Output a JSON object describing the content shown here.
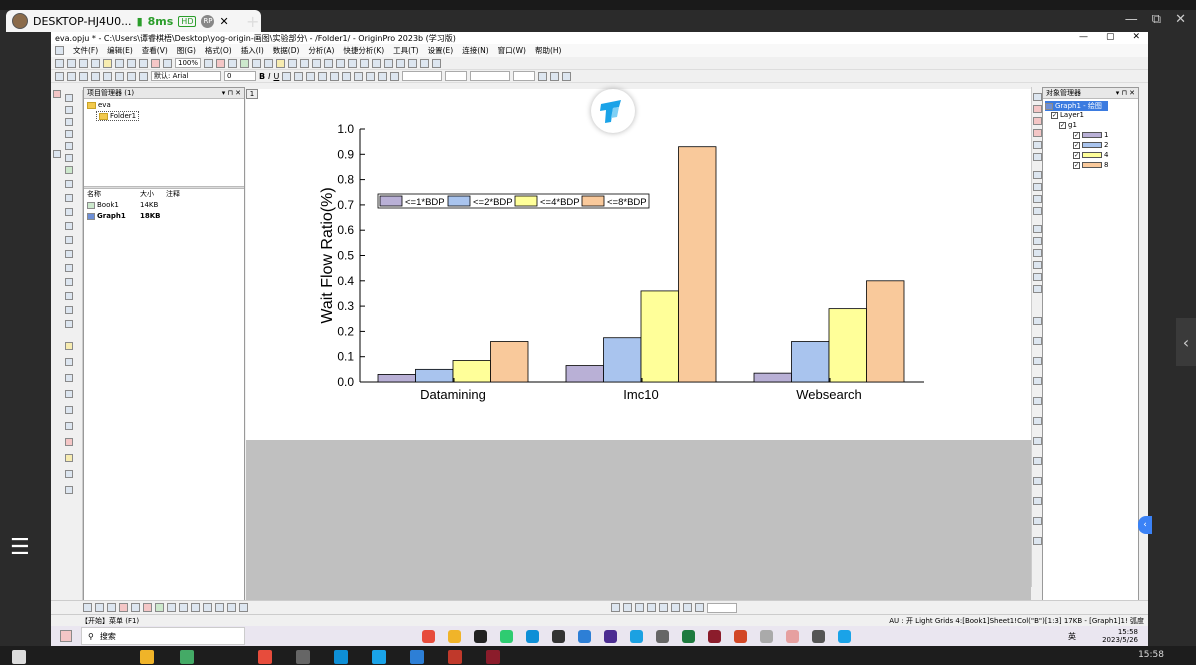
{
  "remote": {
    "tab_title": "DESKTOP-HJ4U0...",
    "latency": "8ms",
    "quality_badge": "HD",
    "badge2": "RP",
    "tab_close": "✕",
    "new_tab": "+",
    "window_controls": [
      "—",
      "⧉",
      "✕"
    ]
  },
  "app": {
    "title": "eva.opju * - C:\\Users\\谭睿棋梧\\Desktop\\yog-origin-画图\\实验部分\\ - /Folder1/ - OriginPro 2023b (学习版)",
    "menu": [
      "文件(F)",
      "编辑(E)",
      "查看(V)",
      "图(G)",
      "格式(O)",
      "插入(I)",
      "数据(D)",
      "分析(A)",
      "快捷分析(K)",
      "工具(T)",
      "设置(E)",
      "连接(N)",
      "窗口(W)",
      "帮助(H)"
    ],
    "toolbar": {
      "zoom": "100%",
      "font": "默认: Arial",
      "size": "0"
    },
    "project_manager": {
      "title": "项目管理器 (1)",
      "root": "eva",
      "folder": "Folder1",
      "columns": [
        "名称",
        "大小",
        "注释"
      ],
      "rows": [
        {
          "name": "Book1",
          "size": "14KB"
        },
        {
          "name": "Graph1",
          "size": "18KB"
        }
      ]
    },
    "page_number": "1",
    "object_manager": {
      "title": "对象管理器",
      "graph": "Graph1 - 绘图",
      "layer": "Layer1",
      "group": "g1",
      "items": [
        "1",
        "2",
        "4",
        "8"
      ]
    },
    "status": {
      "left": "【开始】菜单 (F1)",
      "right": "AU : 开   Light Grids   4:[Book1]Sheet1!Col(\"B\")[1:3]   17KB - [Graph1]1!   弧度"
    }
  },
  "taskbar": {
    "search": "搜索",
    "time": "15:58",
    "date": "2023/5/26",
    "tray_text": "英",
    "host_time": "15:58"
  },
  "colors": {
    "s1": "#b9b0d6",
    "s2": "#a9c4ee",
    "s3": "#ffff99",
    "s4": "#f9c99b"
  },
  "chart_data": {
    "type": "bar",
    "categories": [
      "Datamining",
      "Imc10",
      "Websearch"
    ],
    "series": [
      {
        "name": "<=1*BDP",
        "values": [
          0.03,
          0.065,
          0.035
        ]
      },
      {
        "name": "<=2*BDP",
        "values": [
          0.05,
          0.175,
          0.16
        ]
      },
      {
        "name": "<=4*BDP",
        "values": [
          0.085,
          0.36,
          0.29
        ]
      },
      {
        "name": "<=8*BDP",
        "values": [
          0.16,
          0.93,
          0.4
        ]
      }
    ],
    "title": "",
    "xlabel": "",
    "ylabel": "Wait Flow Ratio(%)",
    "ylim": [
      0,
      1.0
    ],
    "yticks": [
      "0.0",
      "0.1",
      "0.2",
      "0.3",
      "0.4",
      "0.5",
      "0.6",
      "0.7",
      "0.8",
      "0.9",
      "1.0"
    ],
    "legend_position": "top-left",
    "grid": false
  }
}
